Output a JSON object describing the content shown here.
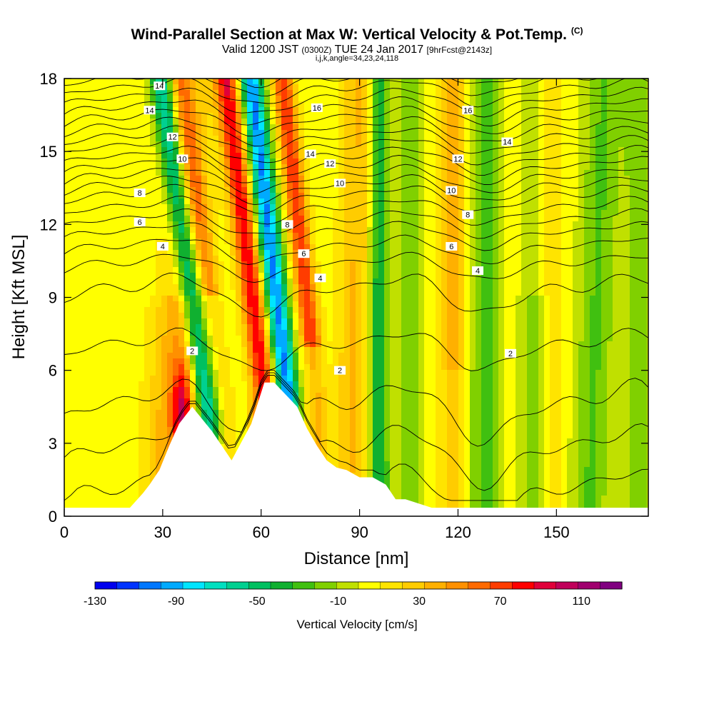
{
  "chart_data": {
    "type": "heatmap",
    "title": "Wind-Parallel Section at Max W: Vertical Velocity & Pot.Temp.",
    "title_mark": "(C)",
    "subtitle_main": "Valid 1200 JST",
    "subtitle_utc": "(0300Z)",
    "subtitle_date": "TUE 24 Jan 2017",
    "subtitle_fcst": "[9hrFcst@2143z]",
    "subtitle2": "i,j,k,angle=34,23,24,118",
    "xlabel": "Distance [nm]",
    "ylabel": "Height [Kft MSL]",
    "xlim": [
      0,
      178
    ],
    "ylim": [
      0,
      18
    ],
    "x_ticks": [
      "0",
      "30",
      "60",
      "90",
      "120",
      "150"
    ],
    "x_tick_values": [
      0,
      30,
      60,
      90,
      120,
      150
    ],
    "y_ticks": [
      "0",
      "3",
      "6",
      "9",
      "12",
      "15",
      "18"
    ],
    "y_tick_values": [
      0,
      3,
      6,
      9,
      12,
      15,
      18
    ],
    "colorbar": {
      "title": "Vertical Velocity [cm/s]",
      "tick_labels": [
        "-130",
        "-90",
        "-50",
        "-10",
        "30",
        "70",
        "110"
      ],
      "tick_values": [
        -130,
        -90,
        -50,
        -10,
        30,
        70,
        110
      ],
      "range": [
        -130,
        130
      ],
      "colors": [
        "#0000ee",
        "#0033ff",
        "#0077ff",
        "#00aaff",
        "#00e5ff",
        "#00e0c0",
        "#00d090",
        "#00c060",
        "#10b030",
        "#40c010",
        "#80d000",
        "#c0e000",
        "#ffff00",
        "#ffe400",
        "#ffcc00",
        "#ffb000",
        "#ff9000",
        "#ff6a00",
        "#ff3c00",
        "#ff0000",
        "#e0003a",
        "#c0005a",
        "#a0006e",
        "#800080"
      ]
    },
    "terrain_profile_x": [
      0,
      20,
      22,
      24,
      26,
      29,
      32,
      35,
      39,
      45,
      48,
      51,
      57,
      61,
      64,
      71,
      74,
      77,
      80,
      83,
      86,
      90,
      94,
      98,
      101,
      104,
      112,
      118,
      178
    ],
    "terrain_profile_kft": [
      0.35,
      0.35,
      0.65,
      0.95,
      1.3,
      1.9,
      2.9,
      3.8,
      4.5,
      3.5,
      2.9,
      2.3,
      3.8,
      5.5,
      5.5,
      4.5,
      3.6,
      2.9,
      2.3,
      2.0,
      1.9,
      1.6,
      1.6,
      1.3,
      0.7,
      0.7,
      0.35,
      0.35,
      0.35
    ],
    "theta_contour_labels": [
      {
        "label": "14",
        "x": 29,
        "y": 17.7
      },
      {
        "label": "14",
        "x": 26,
        "y": 16.7
      },
      {
        "label": "12",
        "x": 33,
        "y": 15.6
      },
      {
        "label": "10",
        "x": 36,
        "y": 14.7
      },
      {
        "label": "8",
        "x": 23,
        "y": 13.3
      },
      {
        "label": "6",
        "x": 23,
        "y": 12.1
      },
      {
        "label": "4",
        "x": 30,
        "y": 11.1
      },
      {
        "label": "2",
        "x": 39,
        "y": 6.8
      },
      {
        "label": "16",
        "x": 77,
        "y": 16.8
      },
      {
        "label": "14",
        "x": 75,
        "y": 14.9
      },
      {
        "label": "12",
        "x": 81,
        "y": 14.5
      },
      {
        "label": "10",
        "x": 84,
        "y": 13.7
      },
      {
        "label": "8",
        "x": 68,
        "y": 12.0
      },
      {
        "label": "6",
        "x": 73,
        "y": 10.8
      },
      {
        "label": "4",
        "x": 78,
        "y": 9.8
      },
      {
        "label": "2",
        "x": 84,
        "y": 6.0
      },
      {
        "label": "16",
        "x": 123,
        "y": 16.7
      },
      {
        "label": "14",
        "x": 135,
        "y": 15.4
      },
      {
        "label": "12",
        "x": 120,
        "y": 14.7
      },
      {
        "label": "10",
        "x": 118,
        "y": 13.4
      },
      {
        "label": "8",
        "x": 123,
        "y": 12.4
      },
      {
        "label": "6",
        "x": 118,
        "y": 11.1
      },
      {
        "label": "4",
        "x": 126,
        "y": 10.1
      },
      {
        "label": "2",
        "x": 136,
        "y": 6.7
      }
    ]
  }
}
